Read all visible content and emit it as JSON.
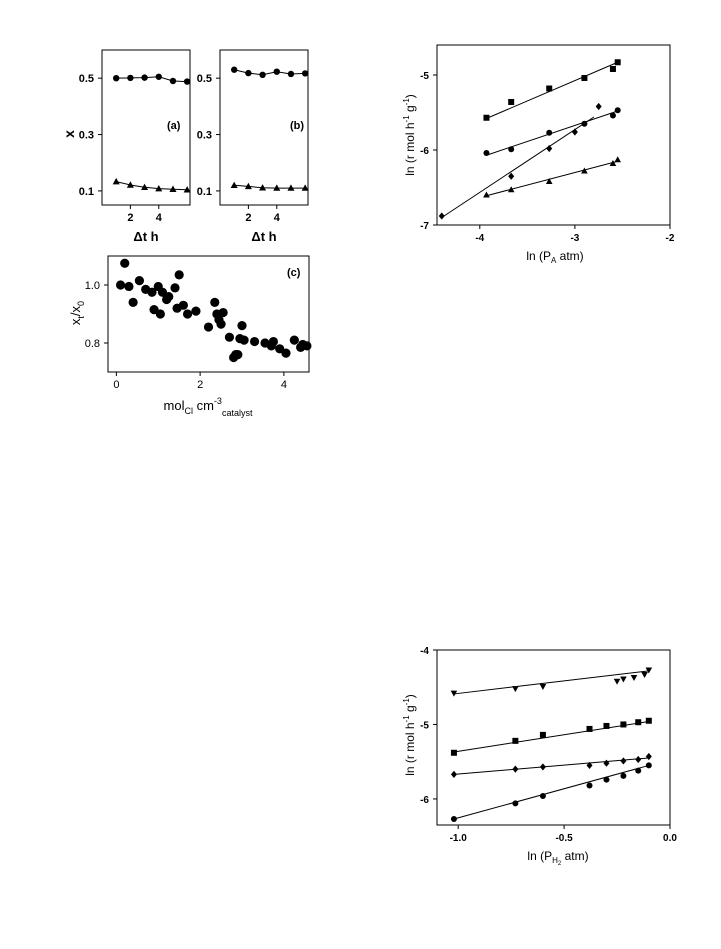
{
  "chart_data": [
    {
      "id": "a",
      "type": "scatter",
      "panel_label": "(a)",
      "xlabel": "Δt h",
      "ylabel": "x",
      "xticks": [
        2,
        4
      ],
      "yticks": [
        "0.1",
        "0.3",
        "0.5"
      ],
      "xlim": [
        0,
        6.2
      ],
      "ylim": [
        0.05,
        0.6
      ],
      "series": [
        {
          "marker": "circle",
          "x": [
            1,
            2,
            3,
            4,
            5,
            6
          ],
          "y": [
            0.5,
            0.501,
            0.502,
            0.505,
            0.49,
            0.488
          ]
        },
        {
          "marker": "triangle",
          "x": [
            1,
            2,
            3,
            4,
            5,
            6
          ],
          "y": [
            0.133,
            0.121,
            0.113,
            0.108,
            0.106,
            0.104
          ]
        }
      ]
    },
    {
      "id": "b",
      "type": "scatter",
      "panel_label": "(b)",
      "xlabel": "Δt h",
      "ylabel": "",
      "xticks": [
        2,
        4
      ],
      "yticks": [
        "0.1",
        "0.3",
        "0.5"
      ],
      "xlim": [
        0,
        6.2
      ],
      "ylim": [
        0.05,
        0.6
      ],
      "series": [
        {
          "marker": "circle",
          "x": [
            1,
            2,
            3,
            4,
            5,
            6
          ],
          "y": [
            0.53,
            0.518,
            0.512,
            0.523,
            0.515,
            0.517
          ]
        },
        {
          "marker": "triangle",
          "x": [
            1,
            2,
            3,
            4,
            5,
            6
          ],
          "y": [
            0.12,
            0.116,
            0.111,
            0.11,
            0.11,
            0.11
          ]
        }
      ]
    },
    {
      "id": "c",
      "type": "scatter",
      "panel_label": "(c)",
      "xlabel": {
        "main": "mol",
        "sub1": "Cl",
        "mid": " cm",
        "sup": "-3",
        "sub2": "catalyst"
      },
      "ylabel": {
        "a": "x",
        "sub_a": "t",
        "slash": "/x",
        "sub_b": "0"
      },
      "xticks": [
        "0",
        "2",
        "4"
      ],
      "yticks": [
        "0.8",
        "1.0"
      ],
      "xlim": [
        -0.2,
        4.6
      ],
      "ylim": [
        0.7,
        1.1
      ],
      "series": [
        {
          "marker": "circle",
          "x": [
            0.1,
            0.2,
            0.3,
            0.4,
            0.55,
            0.7,
            0.85,
            0.9,
            1.0,
            1.05,
            1.1,
            1.2,
            1.25,
            1.4,
            1.45,
            1.5,
            1.6,
            1.7,
            1.9,
            2.2,
            2.35,
            2.4,
            2.45,
            2.5,
            2.55,
            2.7,
            2.8,
            2.85,
            2.9,
            2.95,
            3.0,
            3.05,
            3.3,
            3.55,
            3.7,
            3.75,
            3.9,
            4.05,
            4.25,
            4.4,
            4.45,
            4.55
          ],
          "y": [
            1.0,
            1.075,
            0.995,
            0.94,
            1.015,
            0.985,
            0.975,
            0.915,
            0.995,
            0.9,
            0.975,
            0.95,
            0.96,
            0.99,
            0.92,
            1.035,
            0.93,
            0.9,
            0.91,
            0.855,
            0.94,
            0.9,
            0.88,
            0.865,
            0.905,
            0.82,
            0.75,
            0.76,
            0.76,
            0.815,
            0.86,
            0.81,
            0.805,
            0.8,
            0.79,
            0.805,
            0.78,
            0.765,
            0.81,
            0.785,
            0.795,
            0.79
          ]
        }
      ]
    },
    {
      "id": "d",
      "type": "scatter",
      "ylabel": {
        "a": "ln (r mol h",
        "sup1": "-1",
        "b": " g",
        "sup2": "-1",
        "c": ")"
      },
      "xlabel": {
        "a": "ln (P",
        "sub": "A",
        "b": " atm)"
      },
      "xticks": [
        "-4",
        "-3",
        "-2"
      ],
      "yticks": [
        "-7",
        "-6",
        "-5"
      ],
      "xlim": [
        -4.45,
        -2
      ],
      "ylim": [
        -7,
        -4.6
      ],
      "series": [
        {
          "marker": "square",
          "x": [
            -3.93,
            -3.67,
            -3.27,
            -2.9,
            -2.6,
            -2.55
          ],
          "y": [
            -5.57,
            -5.36,
            -5.18,
            -5.04,
            -4.92,
            -4.83
          ],
          "fit": [
            [
              -3.93,
              -5.58
            ],
            [
              -2.55,
              -4.83
            ]
          ]
        },
        {
          "marker": "circle",
          "x": [
            -3.93,
            -3.67,
            -3.27,
            -2.9,
            -2.6,
            -2.55
          ],
          "y": [
            -6.04,
            -5.99,
            -5.77,
            -5.65,
            -5.54,
            -5.47
          ],
          "fit": [
            [
              -3.93,
              -6.07
            ],
            [
              -2.55,
              -5.48
            ]
          ]
        },
        {
          "marker": "diamond",
          "x": [
            -4.4,
            -3.67,
            -3.27,
            -3.0,
            -2.75
          ],
          "y": [
            -6.88,
            -6.35,
            -5.98,
            -5.76,
            -5.42
          ],
          "fit": [
            [
              -4.4,
              -6.9
            ],
            [
              -2.8,
              -5.56
            ]
          ]
        },
        {
          "marker": "triangle",
          "x": [
            -3.93,
            -3.67,
            -3.27,
            -2.9,
            -2.6,
            -2.55
          ],
          "y": [
            -6.6,
            -6.53,
            -6.42,
            -6.28,
            -6.18,
            -6.13
          ],
          "fit": [
            [
              -3.93,
              -6.61
            ],
            [
              -2.55,
              -6.15
            ]
          ]
        }
      ]
    },
    {
      "id": "e",
      "type": "scatter",
      "ylabel": {
        "a": "ln (r mol h",
        "sup1": "-1",
        "b": " g",
        "sup2": "-1",
        "c": ")"
      },
      "xlabel": {
        "a": "ln (P",
        "sub": "H",
        "subsub": "2",
        "b": " atm)"
      },
      "xticks": [
        "-1.0",
        "-0.5",
        "0.0"
      ],
      "yticks": [
        "-6",
        "-5",
        "-4"
      ],
      "xlim": [
        -1.1,
        0.0
      ],
      "ylim": [
        -6.35,
        -4.0
      ],
      "series": [
        {
          "marker": "triangle-down",
          "x": [
            -1.02,
            -0.73,
            -0.6,
            -0.25,
            -0.22,
            -0.17,
            -0.12,
            -0.1
          ],
          "y": [
            -4.58,
            -4.52,
            -4.49,
            -4.42,
            -4.39,
            -4.37,
            -4.33,
            -4.27
          ],
          "fit": [
            [
              -1.02,
              -4.59
            ],
            [
              -0.1,
              -4.28
            ]
          ]
        },
        {
          "marker": "square",
          "x": [
            -1.02,
            -0.73,
            -0.6,
            -0.38,
            -0.3,
            -0.22,
            -0.15,
            -0.1
          ],
          "y": [
            -5.38,
            -5.22,
            -5.14,
            -5.06,
            -5.02,
            -5.0,
            -4.97,
            -4.95
          ],
          "fit": [
            [
              -1.02,
              -5.37
            ],
            [
              -0.1,
              -4.96
            ]
          ]
        },
        {
          "marker": "diamond",
          "x": [
            -1.02,
            -0.73,
            -0.6,
            -0.38,
            -0.3,
            -0.22,
            -0.15,
            -0.1
          ],
          "y": [
            -5.67,
            -5.6,
            -5.57,
            -5.55,
            -5.52,
            -5.49,
            -5.47,
            -5.43
          ],
          "fit": [
            [
              -1.02,
              -5.67
            ],
            [
              -0.1,
              -5.45
            ]
          ]
        },
        {
          "marker": "circle",
          "x": [
            -1.02,
            -0.73,
            -0.6,
            -0.38,
            -0.3,
            -0.22,
            -0.15,
            -0.1
          ],
          "y": [
            -6.27,
            -6.06,
            -5.96,
            -5.82,
            -5.74,
            -5.69,
            -5.62,
            -5.55
          ],
          "fit": [
            [
              -1.02,
              -6.27
            ],
            [
              -0.1,
              -5.55
            ]
          ]
        }
      ]
    }
  ]
}
